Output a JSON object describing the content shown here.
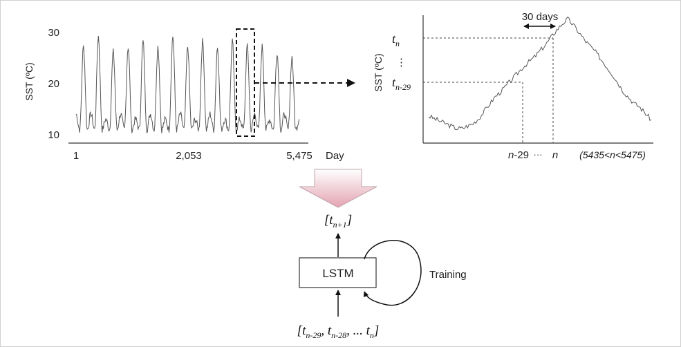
{
  "left_chart": {
    "y_label": "SST (ºC)",
    "y_ticks": [
      "30",
      "20",
      "10"
    ],
    "x_ticks": [
      "1",
      "2,053",
      "5,475"
    ],
    "x_label": "Day"
  },
  "right_chart": {
    "y_label": "SST (ºC)",
    "tn_main": "t",
    "tn_sub": "n",
    "dots": "⋮",
    "tn29_main": "t",
    "tn29_sub": "n-29",
    "window_label": "30 days",
    "x_n29_italic": "n",
    "x_n29_rest": "-29",
    "x_dots": "···",
    "x_n": "n",
    "range_note": "(5435<n<5475)"
  },
  "model": {
    "lstm_label": "LSTM",
    "training_label": "Training",
    "output_label": "[t",
    "output_sub": "n+1",
    "output_close": "]",
    "input_open": "[t",
    "input_sub1": "n-29",
    "input_sep1": ", t",
    "input_sub2": "n-28",
    "input_sep2": ", ... t",
    "input_sub3": "n",
    "input_close": "]"
  },
  "chart_data": [
    {
      "type": "line",
      "title": "",
      "xlabel": "Day",
      "ylabel": "SST (ºC)",
      "ylim": [
        9,
        31
      ],
      "xlim": [
        1,
        5475
      ],
      "x_ticks": [
        1,
        2053,
        5475
      ],
      "y_ticks": [
        10,
        20,
        30
      ],
      "series": [
        {
          "x": [
            1,
            90,
            183,
            276,
            365,
            456,
            548,
            641,
            730,
            821,
            913,
            1006,
            1095,
            1186,
            1278,
            1371,
            1460,
            1551,
            1643,
            1736,
            1825,
            1916,
            2008,
            2101,
            2190,
            2281,
            2373,
            2466,
            2555,
            2646,
            2738,
            2831,
            2920,
            3011,
            3103,
            3196,
            3285,
            3376,
            3468,
            3561,
            3650,
            3741,
            3833,
            3926,
            4015,
            4106,
            4198,
            4291,
            4380,
            4471,
            4563,
            4656,
            4745,
            4836,
            4928,
            5021,
            5110,
            5201,
            5293,
            5386,
            5475
          ],
          "values": [
            14,
            11,
            27,
            11,
            14,
            11,
            29,
            11,
            13,
            11,
            26,
            11,
            14,
            11,
            27,
            11,
            13,
            11,
            28,
            11,
            14,
            11,
            27,
            11,
            13,
            11,
            29,
            11,
            14,
            11,
            27,
            11,
            13,
            11,
            28,
            11,
            14,
            11,
            27,
            11,
            13,
            11,
            28,
            11,
            13,
            11,
            27,
            11,
            14,
            11,
            27,
            11,
            13,
            11,
            26,
            11,
            14,
            11,
            25,
            11,
            13
          ]
        }
      ]
    },
    {
      "type": "line",
      "title": "",
      "ylabel": "SST (ºC)",
      "xlabel": "",
      "series": [
        {
          "values": [
            0.18,
            0.16,
            0.14,
            0.12,
            0.1,
            0.08,
            0.08,
            0.1,
            0.12,
            0.16,
            0.22,
            0.28,
            0.34,
            0.38,
            0.43,
            0.48,
            0.53,
            0.58,
            0.62,
            0.66,
            0.71,
            0.76,
            0.82,
            0.88,
            0.93,
            0.97,
            0.92,
            0.86,
            0.8,
            0.75,
            0.7,
            0.64,
            0.58,
            0.52,
            0.45,
            0.38,
            0.33,
            0.28,
            0.25,
            0.2,
            0.15
          ]
        }
      ]
    }
  ]
}
